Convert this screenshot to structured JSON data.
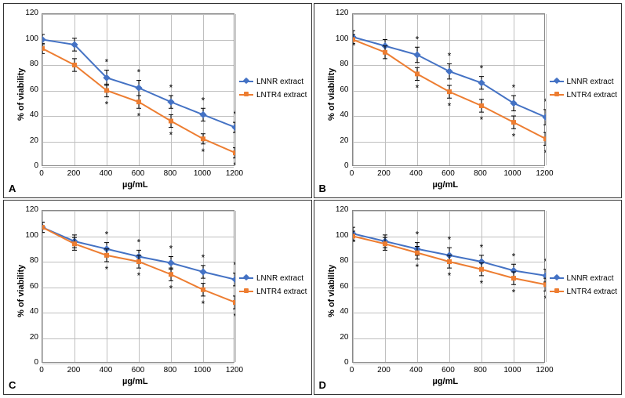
{
  "common": {
    "x": [
      0,
      200,
      400,
      600,
      800,
      1000,
      1200
    ],
    "xlim": [
      0,
      1200
    ],
    "xtick_step": 200,
    "xlabel": "µg/mL",
    "ylabel": "% of viability",
    "label_fontsize": 11,
    "tick_fontsize": 10,
    "grid_color": "#bfbfbf",
    "background_color": "#ffffff",
    "border_color": "#888888",
    "series_colors": {
      "LNNR": "#4472c4",
      "LNTR4": "#ed7d31"
    },
    "marker_styles": {
      "LNNR": "diamond",
      "LNTR4": "square"
    },
    "marker_size": 6,
    "line_width": 2,
    "legend_labels": [
      "LNNR extract",
      "LNTR4 extract"
    ],
    "error_bar_color": "#000000",
    "significance_marker": "*",
    "significance_color": "#000000"
  },
  "panels": {
    "A": {
      "label": "A",
      "ylim": [
        0,
        120
      ],
      "ytick_step": 20,
      "LNNR": {
        "y": [
          100,
          96,
          70,
          62,
          51,
          41,
          31
        ],
        "err": [
          4,
          5,
          6,
          6,
          5,
          5,
          4
        ],
        "sig": [
          0,
          0,
          1,
          1,
          1,
          1,
          1
        ]
      },
      "LNTR4": {
        "y": [
          93,
          80,
          60,
          51,
          36,
          22,
          11
        ],
        "err": [
          4,
          5,
          5,
          5,
          5,
          4,
          4
        ],
        "sig": [
          0,
          0,
          1,
          1,
          1,
          1,
          1
        ]
      }
    },
    "B": {
      "label": "B",
      "ylim": [
        0,
        120
      ],
      "ytick_step": 20,
      "LNNR": {
        "y": [
          102,
          95,
          88,
          75,
          66,
          50,
          39
        ],
        "err": [
          5,
          5,
          6,
          6,
          5,
          6,
          6
        ],
        "sig": [
          0,
          0,
          1,
          1,
          1,
          1,
          1
        ]
      },
      "LNTR4": {
        "y": [
          100,
          90,
          73,
          59,
          48,
          35,
          22
        ],
        "err": [
          4,
          5,
          5,
          5,
          5,
          5,
          5
        ],
        "sig": [
          0,
          0,
          1,
          1,
          1,
          1,
          1
        ]
      }
    },
    "C": {
      "label": "C",
      "ylim": [
        0,
        120
      ],
      "ytick_step": 20,
      "LNNR": {
        "y": [
          107,
          96,
          90,
          84,
          79,
          72,
          66
        ],
        "err": [
          4,
          5,
          5,
          5,
          5,
          5,
          5
        ],
        "sig": [
          0,
          0,
          1,
          1,
          1,
          1,
          1
        ]
      },
      "LNTR4": {
        "y": [
          107,
          94,
          85,
          80,
          70,
          58,
          48
        ],
        "err": [
          4,
          5,
          5,
          5,
          5,
          5,
          5
        ],
        "sig": [
          0,
          0,
          1,
          1,
          1,
          1,
          1
        ]
      }
    },
    "D": {
      "label": "D",
      "ylim": [
        0,
        120
      ],
      "ytick_step": 20,
      "LNNR": {
        "y": [
          102,
          96,
          90,
          85,
          80,
          73,
          69
        ],
        "err": [
          5,
          5,
          5,
          6,
          5,
          5,
          5
        ],
        "sig": [
          0,
          0,
          1,
          1,
          1,
          1,
          1
        ]
      },
      "LNTR4": {
        "y": [
          100,
          94,
          87,
          80,
          74,
          67,
          62
        ],
        "err": [
          4,
          5,
          5,
          5,
          5,
          5,
          5
        ],
        "sig": [
          0,
          0,
          1,
          1,
          1,
          1,
          1
        ]
      }
    }
  }
}
